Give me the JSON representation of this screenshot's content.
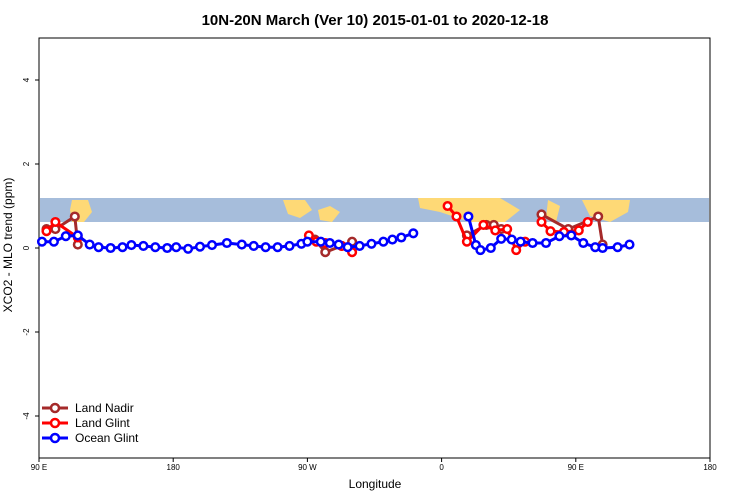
{
  "chart_data": {
    "type": "line",
    "title": "10N-20N March (Ver 10)   2015-01-01 to 2020-12-18",
    "xlabel": "Longitude",
    "ylabel": "XCO2 - MLO trend (ppm)",
    "xlim": [
      90,
      450
    ],
    "ylim": [
      -5,
      5
    ],
    "x_ticks": [
      {
        "value": 90,
        "label": "90 E"
      },
      {
        "value": 180,
        "label": "180"
      },
      {
        "value": 270,
        "label": "90 W"
      },
      {
        "value": 360,
        "label": "0"
      },
      {
        "value": 450,
        "label": "90 E"
      },
      {
        "value": 540,
        "label": "180"
      }
    ],
    "y_ticks": [
      {
        "value": 4,
        "label": "4"
      },
      {
        "value": 2,
        "label": "2"
      },
      {
        "value": 0,
        "label": "0"
      },
      {
        "value": -2,
        "label": "-2"
      },
      {
        "value": -4,
        "label": "-4"
      }
    ],
    "legend_position": "bottom-left",
    "series": [
      {
        "name": "Land Nadir",
        "color": "#a52a2a",
        "segments": [
          [
            [
              95,
              0.45
            ],
            [
              101,
              0.45
            ],
            [
              114,
              0.75
            ],
            [
              116,
              0.08
            ]
          ],
          [
            [
              275,
              0.2
            ],
            [
              282,
              -0.1
            ],
            [
              293,
              0.05
            ],
            [
              300,
              0.15
            ]
          ],
          [
            [
              377,
              0.3
            ],
            [
              390,
              0.55
            ],
            [
              395,
              0.55
            ],
            [
              400,
              0.45
            ]
          ],
          [
            [
              427,
              0.8
            ],
            [
              445,
              0.45
            ],
            [
              465,
              0.75
            ],
            [
              468,
              0.08
            ]
          ]
        ]
      },
      {
        "name": "Land Glint",
        "color": "#ff0000",
        "segments": [
          [
            [
              95,
              0.4
            ],
            [
              101,
              0.62
            ],
            [
              116,
              0.25
            ]
          ],
          [
            [
              271,
              0.3
            ],
            [
              276,
              0.15
            ],
            [
              282,
              0.12
            ],
            [
              293,
              0.05
            ],
            [
              300,
              -0.1
            ]
          ],
          [
            [
              364,
              1.0
            ],
            [
              370,
              0.75
            ],
            [
              377,
              0.15
            ],
            [
              388,
              0.55
            ],
            [
              396,
              0.42
            ],
            [
              404,
              0.45
            ],
            [
              410,
              -0.05
            ],
            [
              416,
              0.15
            ]
          ],
          [
            [
              427,
              0.62
            ],
            [
              433,
              0.4
            ],
            [
              442,
              0.38
            ],
            [
              452,
              0.42
            ],
            [
              458,
              0.62
            ]
          ]
        ]
      },
      {
        "name": "Ocean Glint",
        "color": "#0000ff",
        "segments": [
          [
            [
              92,
              0.15
            ],
            [
              100,
              0.15
            ],
            [
              108,
              0.28
            ],
            [
              116,
              0.3
            ],
            [
              124,
              0.08
            ],
            [
              130,
              0.02
            ],
            [
              138,
              0.0
            ],
            [
              146,
              0.02
            ],
            [
              152,
              0.07
            ],
            [
              160,
              0.05
            ],
            [
              168,
              0.02
            ],
            [
              176,
              0.0
            ],
            [
              182,
              0.02
            ],
            [
              190,
              -0.02
            ],
            [
              198,
              0.03
            ],
            [
              206,
              0.07
            ],
            [
              216,
              0.12
            ],
            [
              226,
              0.08
            ],
            [
              234,
              0.05
            ],
            [
              242,
              0.02
            ],
            [
              250,
              0.02
            ],
            [
              258,
              0.05
            ],
            [
              266,
              0.1
            ],
            [
              270,
              0.15
            ],
            [
              279,
              0.15
            ],
            [
              285,
              0.12
            ],
            [
              291,
              0.08
            ],
            [
              297,
              0.02
            ],
            [
              305,
              0.05
            ],
            [
              313,
              0.1
            ],
            [
              321,
              0.15
            ],
            [
              327,
              0.2
            ],
            [
              333,
              0.25
            ],
            [
              341,
              0.35
            ]
          ],
          [
            [
              378,
              0.75
            ],
            [
              383,
              0.07
            ],
            [
              386,
              -0.05
            ],
            [
              393,
              0.0
            ],
            [
              400,
              0.22
            ],
            [
              407,
              0.2
            ],
            [
              413,
              0.15
            ],
            [
              421,
              0.12
            ],
            [
              430,
              0.12
            ],
            [
              439,
              0.28
            ],
            [
              447,
              0.3
            ],
            [
              455,
              0.12
            ],
            [
              463,
              0.02
            ],
            [
              468,
              0.0
            ],
            [
              478,
              0.02
            ],
            [
              486,
              0.08
            ]
          ]
        ]
      }
    ]
  }
}
